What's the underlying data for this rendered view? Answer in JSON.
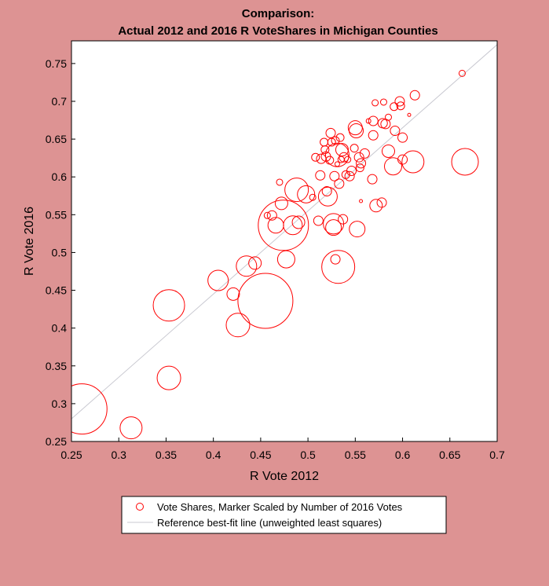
{
  "colors": {
    "background": "#dd9393",
    "plot_bg": "#ffffff",
    "marker": "#ff0000",
    "reference_line": "#c8c8d0"
  },
  "chart_data": {
    "type": "scatter",
    "title_line1": "Comparison:",
    "title_line2": "Actual 2012 and 2016 R VoteShares in Michigan Counties",
    "xlabel": "R Vote 2012",
    "ylabel": "R Vote 2016",
    "xlim": [
      0.25,
      0.7
    ],
    "ylim": [
      0.25,
      0.78
    ],
    "xticks": [
      "0.25",
      "0.3",
      "0.35",
      "0.4",
      "0.45",
      "0.5",
      "0.55",
      "0.6",
      "0.65",
      "0.7"
    ],
    "yticks": [
      "0.25",
      "0.3",
      "0.35",
      "0.4",
      "0.45",
      "0.5",
      "0.55",
      "0.6",
      "0.65",
      "0.7",
      "0.75"
    ],
    "grid": false,
    "legend_position": "bottom",
    "legend": [
      {
        "label": "Vote Shares, Marker Scaled by Number of 2016 Votes",
        "symbol": "circle"
      },
      {
        "label": "Reference best-fit line (unweighted least squares)",
        "symbol": "line"
      }
    ],
    "reference_line": {
      "x": [
        0.25,
        0.7
      ],
      "y": [
        0.28,
        0.775
      ]
    },
    "series": [
      {
        "points": [
          [
            0.261,
            0.293,
            32
          ],
          [
            0.313,
            0.268,
            14
          ],
          [
            0.353,
            0.43,
            20
          ],
          [
            0.353,
            0.334,
            15
          ],
          [
            0.405,
            0.463,
            13
          ],
          [
            0.421,
            0.445,
            8
          ],
          [
            0.426,
            0.404,
            15
          ],
          [
            0.435,
            0.482,
            13
          ],
          [
            0.444,
            0.486,
            8
          ],
          [
            0.455,
            0.436,
            35
          ],
          [
            0.457,
            0.549,
            4
          ],
          [
            0.462,
            0.549,
            6
          ],
          [
            0.466,
            0.536,
            10
          ],
          [
            0.47,
            0.593,
            4
          ],
          [
            0.472,
            0.565,
            8
          ],
          [
            0.474,
            0.536,
            32
          ],
          [
            0.477,
            0.491,
            11
          ],
          [
            0.484,
            0.536,
            12
          ],
          [
            0.488,
            0.583,
            15
          ],
          [
            0.49,
            0.54,
            8
          ],
          [
            0.498,
            0.577,
            11
          ],
          [
            0.505,
            0.573,
            4
          ],
          [
            0.508,
            0.626,
            5
          ],
          [
            0.511,
            0.542,
            6
          ],
          [
            0.513,
            0.602,
            6
          ],
          [
            0.514,
            0.624,
            6
          ],
          [
            0.517,
            0.646,
            5
          ],
          [
            0.518,
            0.636,
            5
          ],
          [
            0.519,
            0.627,
            6
          ],
          [
            0.52,
            0.581,
            6
          ],
          [
            0.521,
            0.574,
            12
          ],
          [
            0.523,
            0.622,
            5
          ],
          [
            0.524,
            0.658,
            6
          ],
          [
            0.525,
            0.646,
            5
          ],
          [
            0.527,
            0.538,
            13
          ],
          [
            0.527,
            0.533,
            10
          ],
          [
            0.528,
            0.601,
            6
          ],
          [
            0.529,
            0.648,
            5
          ],
          [
            0.529,
            0.491,
            6
          ],
          [
            0.531,
            0.629,
            15
          ],
          [
            0.531,
            0.617,
            3
          ],
          [
            0.532,
            0.481,
            21
          ],
          [
            0.533,
            0.591,
            6
          ],
          [
            0.534,
            0.652,
            5
          ],
          [
            0.535,
            0.623,
            4
          ],
          [
            0.536,
            0.636,
            8
          ],
          [
            0.537,
            0.544,
            6
          ],
          [
            0.538,
            0.626,
            6
          ],
          [
            0.54,
            0.603,
            5
          ],
          [
            0.542,
            0.623,
            4
          ],
          [
            0.544,
            0.601,
            6
          ],
          [
            0.546,
            0.608,
            6
          ],
          [
            0.549,
            0.638,
            5
          ],
          [
            0.55,
            0.665,
            9
          ],
          [
            0.551,
            0.661,
            9
          ],
          [
            0.552,
            0.531,
            10
          ],
          [
            0.554,
            0.626,
            6
          ],
          [
            0.555,
            0.612,
            5
          ],
          [
            0.556,
            0.568,
            2
          ],
          [
            0.556,
            0.618,
            6
          ],
          [
            0.56,
            0.631,
            6
          ],
          [
            0.564,
            0.674,
            3
          ],
          [
            0.568,
            0.597,
            6
          ],
          [
            0.569,
            0.674,
            6
          ],
          [
            0.569,
            0.655,
            6
          ],
          [
            0.571,
            0.698,
            4
          ],
          [
            0.572,
            0.562,
            8
          ],
          [
            0.578,
            0.566,
            6
          ],
          [
            0.579,
            0.671,
            6
          ],
          [
            0.58,
            0.699,
            4
          ],
          [
            0.582,
            0.67,
            6
          ],
          [
            0.585,
            0.634,
            8
          ],
          [
            0.585,
            0.679,
            4
          ],
          [
            0.59,
            0.614,
            11
          ],
          [
            0.591,
            0.693,
            5
          ],
          [
            0.592,
            0.661,
            6
          ],
          [
            0.597,
            0.7,
            6
          ],
          [
            0.598,
            0.694,
            5
          ],
          [
            0.6,
            0.623,
            6
          ],
          [
            0.6,
            0.652,
            6
          ],
          [
            0.607,
            0.682,
            2
          ],
          [
            0.611,
            0.62,
            14
          ],
          [
            0.613,
            0.708,
            6
          ],
          [
            0.663,
            0.737,
            4
          ],
          [
            0.666,
            0.62,
            17
          ]
        ]
      }
    ]
  }
}
